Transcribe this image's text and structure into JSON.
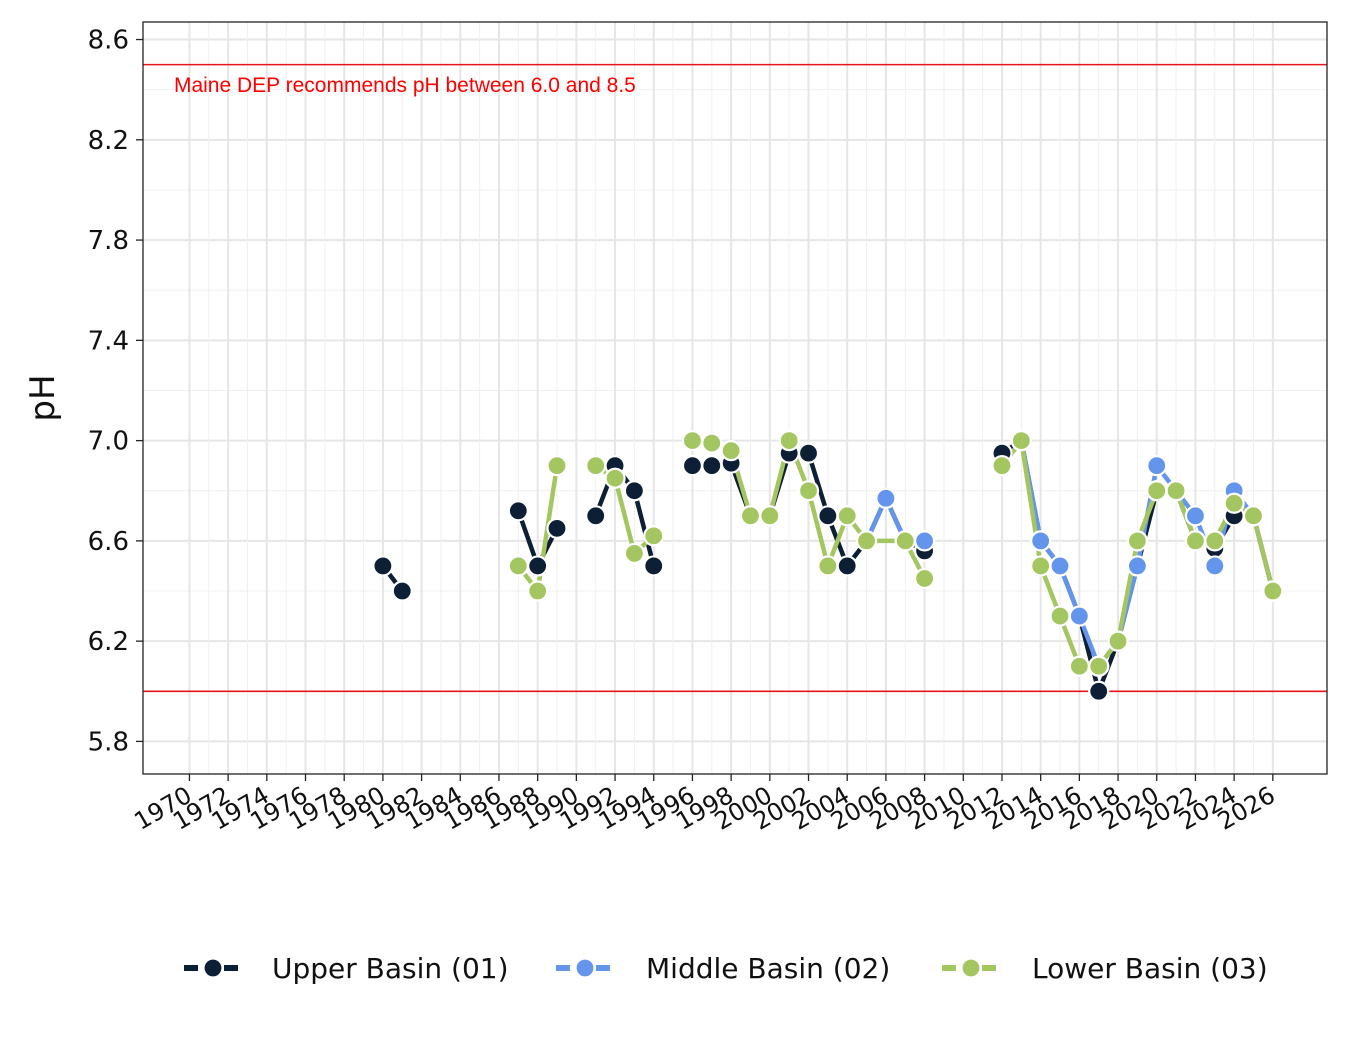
{
  "chart_data": {
    "type": "line",
    "ylabel": "pH",
    "xlabel": "",
    "xlim": [
      1968.6,
      2029.8
    ],
    "ylim": [
      5.67,
      8.67
    ],
    "y_ticks": [
      5.8,
      6.2,
      6.6,
      7.0,
      7.4,
      7.8,
      8.2,
      8.6
    ],
    "y_tick_labels": [
      "5.8",
      "6.2",
      "6.6",
      "7.0",
      "7.4",
      "7.8",
      "8.2",
      "8.6"
    ],
    "x_ticks": [
      1971,
      1973,
      1975,
      1977,
      1979,
      1981,
      1983,
      1985,
      1987,
      1989,
      1991,
      1993,
      1995,
      1997,
      1999,
      2001,
      2003,
      2005,
      2007,
      2009,
      2011,
      2013,
      2015,
      2017,
      2019,
      2021,
      2023,
      2025,
      2027
    ],
    "x_tick_labels": [
      "1970",
      "1972",
      "1974",
      "1976",
      "1978",
      "1980",
      "1982",
      "1984",
      "1986",
      "1988",
      "1990",
      "1992",
      "1994",
      "1996",
      "1998",
      "2000",
      "2002",
      "2004",
      "2006",
      "2008",
      "2010",
      "2012",
      "2014",
      "2016",
      "2018",
      "2020",
      "2022",
      "2024",
      "2026"
    ],
    "grid": true,
    "legend_position": "bottom",
    "reference_lines": [
      {
        "y": 8.5,
        "color": "#e8131b"
      },
      {
        "y": 6.0,
        "color": "#e8131b"
      }
    ],
    "annotation": {
      "text": "Maine DEP recommends pH between 6.0 and 8.5",
      "x": 1970.2,
      "y": 8.39,
      "color": "#ff0000"
    },
    "series": [
      {
        "name": "Upper Basin (01)",
        "color": "#0d1f35",
        "points": [
          [
            1981,
            6.5
          ],
          [
            1982,
            6.4
          ],
          [
            null,
            null
          ],
          [
            1988,
            6.72
          ],
          [
            1989,
            6.5
          ],
          [
            1990,
            6.65
          ],
          [
            null,
            null
          ],
          [
            1992,
            6.7
          ],
          [
            1993,
            6.9
          ],
          [
            1994,
            6.8
          ],
          [
            1995,
            6.5
          ],
          [
            null,
            null
          ],
          [
            1997,
            6.9
          ],
          [
            1998,
            6.9
          ],
          [
            1999,
            6.91
          ],
          [
            2000,
            6.7
          ],
          [
            2001,
            6.7
          ],
          [
            2002,
            6.95
          ],
          [
            2003,
            6.95
          ],
          [
            2004,
            6.7
          ],
          [
            2005,
            6.5
          ],
          [
            2006,
            6.6
          ],
          [
            2007,
            6.77
          ],
          [
            2008,
            6.6
          ],
          [
            2009,
            6.56
          ],
          [
            null,
            null
          ],
          [
            2013,
            6.95
          ],
          [
            2014,
            7.0
          ],
          [
            2015,
            6.6
          ],
          [
            2016,
            6.5
          ],
          [
            2017,
            6.3
          ],
          [
            2018,
            6.0
          ],
          [
            2019,
            6.2
          ],
          [
            2020,
            6.5
          ],
          [
            2021,
            6.8
          ],
          [
            2022,
            6.8
          ],
          [
            2023,
            6.6
          ],
          [
            2024,
            6.57
          ],
          [
            2025,
            6.7
          ],
          [
            2026,
            6.7
          ],
          [
            2027,
            6.4
          ]
        ]
      },
      {
        "name": "Middle Basin (02)",
        "color": "#6495ed",
        "points": [
          [
            2006,
            6.6
          ],
          [
            2007,
            6.77
          ],
          [
            2008,
            6.6
          ],
          [
            2009,
            6.6
          ],
          [
            null,
            null
          ],
          [
            2013,
            6.9
          ],
          [
            2014,
            7.0
          ],
          [
            2015,
            6.6
          ],
          [
            2016,
            6.5
          ],
          [
            2017,
            6.3
          ],
          [
            2018,
            6.1
          ],
          [
            2019,
            6.2
          ],
          [
            2020,
            6.5
          ],
          [
            2021,
            6.9
          ],
          [
            2022,
            6.8
          ],
          [
            2023,
            6.7
          ],
          [
            2024,
            6.5
          ],
          [
            2025,
            6.8
          ],
          [
            2026,
            6.7
          ],
          [
            2027,
            6.4
          ]
        ]
      },
      {
        "name": "Lower Basin (03)",
        "color": "#a4c661",
        "points": [
          [
            1988,
            6.5
          ],
          [
            1989,
            6.4
          ],
          [
            1990,
            6.9
          ],
          [
            null,
            null
          ],
          [
            1992,
            6.9
          ],
          [
            1993,
            6.85
          ],
          [
            1994,
            6.55
          ],
          [
            1995,
            6.62
          ],
          [
            null,
            null
          ],
          [
            1997,
            7.0
          ],
          [
            1998,
            6.99
          ],
          [
            1999,
            6.96
          ],
          [
            2000,
            6.7
          ],
          [
            2001,
            6.7
          ],
          [
            2002,
            7.0
          ],
          [
            2003,
            6.8
          ],
          [
            2004,
            6.5
          ],
          [
            2005,
            6.7
          ],
          [
            2006,
            6.6
          ],
          [
            2008,
            6.6
          ],
          [
            2009,
            6.45
          ],
          [
            null,
            null
          ],
          [
            2013,
            6.9
          ],
          [
            2014,
            7.0
          ],
          [
            2015,
            6.5
          ],
          [
            2016,
            6.3
          ],
          [
            2017,
            6.1
          ],
          [
            2018,
            6.1
          ],
          [
            2019,
            6.2
          ],
          [
            2020,
            6.6
          ],
          [
            2021,
            6.8
          ],
          [
            2022,
            6.8
          ],
          [
            2023,
            6.6
          ],
          [
            2024,
            6.6
          ],
          [
            2025,
            6.75
          ],
          [
            2026,
            6.7
          ],
          [
            2027,
            6.4
          ]
        ]
      }
    ]
  }
}
